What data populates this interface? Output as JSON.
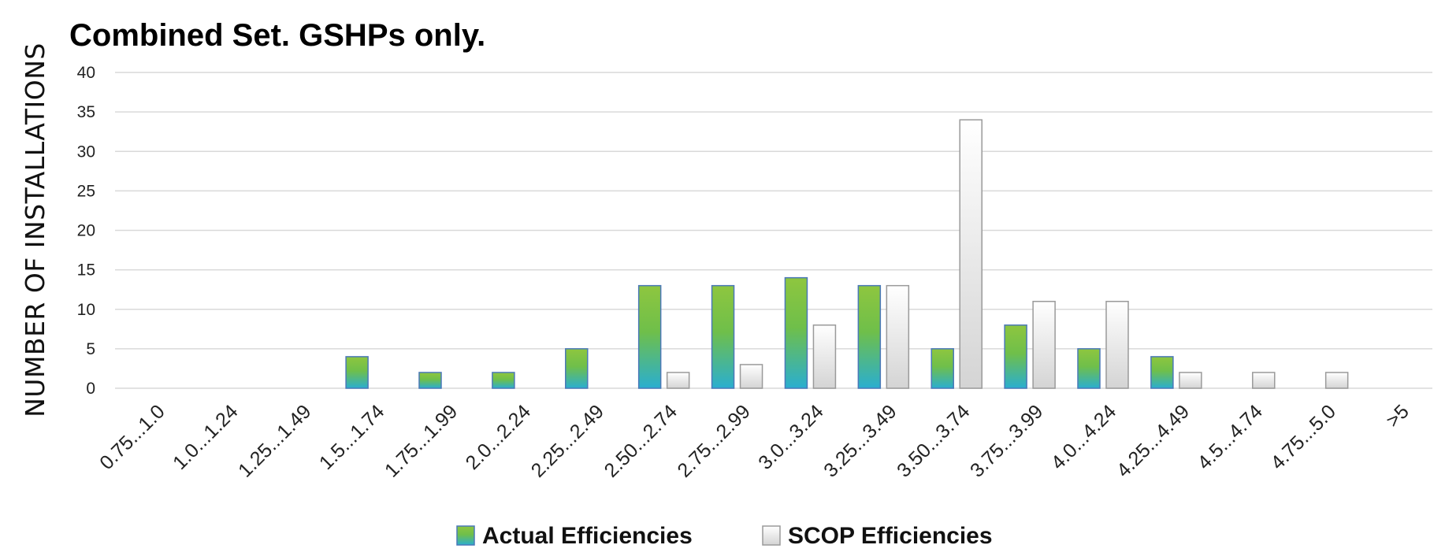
{
  "chart_data": {
    "type": "bar",
    "title": "Combined Set. GSHPs only.",
    "xlabel": "",
    "ylabel": "NUMBER OF INSTALLATIONS",
    "ylim": [
      0,
      40
    ],
    "yticks": [
      0,
      5,
      10,
      15,
      20,
      25,
      30,
      35,
      40
    ],
    "grid": true,
    "legend_position": "bottom-center",
    "categories": [
      "0.75...1.0",
      "1.0...1.24",
      "1.25...1.49",
      "1.5...1.74",
      "1.75...1.99",
      "2.0...2.24",
      "2.25...2.49",
      "2.50...2.74",
      "2.75...2.99",
      "3.0...3.24",
      "3.25...3.49",
      "3.50...3.74",
      "3.75...3.99",
      "4.0...4.24",
      "4.25...4.49",
      "4.5...4.74",
      "4.75...5.0",
      ">5"
    ],
    "series": [
      {
        "name": "Actual Efficiencies",
        "values": [
          0,
          0,
          0,
          4,
          2,
          2,
          5,
          13,
          13,
          14,
          13,
          5,
          8,
          5,
          4,
          0,
          0,
          0
        ]
      },
      {
        "name": "SCOP Efficiencies",
        "values": [
          0,
          0,
          0,
          0,
          0,
          0,
          0,
          2,
          3,
          8,
          13,
          34,
          11,
          11,
          2,
          2,
          2,
          0
        ]
      }
    ],
    "colors": {
      "actual_top": "#8ec63f",
      "actual_bottom": "#2aaed0",
      "actual_stroke": "#4a78b8",
      "scop_top": "#ffffff",
      "scop_bottom": "#d4d4d4",
      "scop_stroke": "#9a9a9a"
    }
  }
}
